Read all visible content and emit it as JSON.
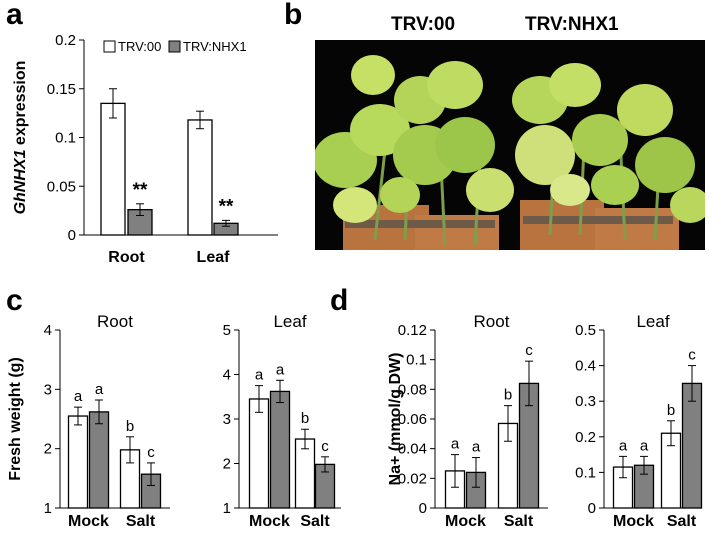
{
  "panel_labels": [
    "a",
    "b",
    "c",
    "d"
  ],
  "photo": {
    "labels": [
      "TRV:00",
      "TRV:NHX1"
    ]
  },
  "colors": {
    "TRV:00": "#ffffff",
    "TRV:NHX1": "#808080",
    "background": "#ffffff",
    "photo_bg": "#000000"
  },
  "chart_data": [
    {
      "id": "a",
      "type": "bar",
      "title": "",
      "ylabel": "GhNHX1 expression",
      "ylim": [
        0,
        0.2
      ],
      "yticks": [
        0,
        0.05,
        0.1,
        0.15,
        0.2
      ],
      "ytick_labels": [
        "0",
        "0.05",
        "0.1",
        "0.15",
        "0.2"
      ],
      "categories": [
        "Root",
        "Leaf"
      ],
      "legend": [
        "TRV:00",
        "TRV:NHX1"
      ],
      "legend_position": "top",
      "series": [
        {
          "name": "TRV:00",
          "values": [
            0.135,
            0.118
          ],
          "errors": [
            0.015,
            0.009
          ],
          "labels": [
            "",
            ""
          ]
        },
        {
          "name": "TRV:NHX1",
          "values": [
            0.026,
            0.012
          ],
          "errors": [
            0.006,
            0.003
          ],
          "labels": [
            "**",
            "**"
          ]
        }
      ]
    },
    {
      "id": "c-root",
      "type": "bar",
      "title": "Root",
      "ylabel": "Fresh weight (g)",
      "ylim": [
        1,
        4
      ],
      "yticks": [
        1,
        2,
        3,
        4
      ],
      "ytick_labels": [
        "1",
        "2",
        "3",
        "4"
      ],
      "categories": [
        "Mock",
        "Salt"
      ],
      "series": [
        {
          "name": "TRV:00",
          "values": [
            2.55,
            1.98
          ],
          "errors": [
            0.15,
            0.22
          ],
          "labels": [
            "a",
            "b"
          ]
        },
        {
          "name": "TRV:NHX1",
          "values": [
            2.62,
            1.57
          ],
          "errors": [
            0.2,
            0.19
          ],
          "labels": [
            "a",
            "c"
          ]
        }
      ]
    },
    {
      "id": "c-leaf",
      "type": "bar",
      "title": "Leaf",
      "ylabel": "",
      "ylim": [
        1,
        5
      ],
      "yticks": [
        1,
        2,
        3,
        4,
        5
      ],
      "ytick_labels": [
        "1",
        "2",
        "3",
        "4",
        "5"
      ],
      "categories": [
        "Mock",
        "Salt"
      ],
      "series": [
        {
          "name": "TRV:00",
          "values": [
            3.45,
            2.55
          ],
          "errors": [
            0.3,
            0.22
          ],
          "labels": [
            "a",
            "b"
          ]
        },
        {
          "name": "TRV:NHX1",
          "values": [
            3.62,
            1.98
          ],
          "errors": [
            0.25,
            0.17
          ],
          "labels": [
            "a",
            "c"
          ]
        }
      ]
    },
    {
      "id": "d-root",
      "type": "bar",
      "title": "Root",
      "ylabel": "Na+ (mmol/g DW)",
      "ylim": [
        0,
        0.12
      ],
      "yticks": [
        0,
        0.02,
        0.04,
        0.06,
        0.08,
        0.1,
        0.12
      ],
      "ytick_labels": [
        "0",
        "0.02",
        "0.04",
        "0.06",
        "0.08",
        "0.1",
        "0.12"
      ],
      "categories": [
        "Mock",
        "Salt"
      ],
      "series": [
        {
          "name": "TRV:00",
          "values": [
            0.025,
            0.057
          ],
          "errors": [
            0.011,
            0.012
          ],
          "labels": [
            "a",
            "b"
          ]
        },
        {
          "name": "TRV:NHX1",
          "values": [
            0.024,
            0.084
          ],
          "errors": [
            0.01,
            0.015
          ],
          "labels": [
            "a",
            "c"
          ]
        }
      ]
    },
    {
      "id": "d-leaf",
      "type": "bar",
      "title": "Leaf",
      "ylabel": "",
      "ylim": [
        0,
        0.5
      ],
      "yticks": [
        0,
        0.1,
        0.2,
        0.3,
        0.4,
        0.5
      ],
      "ytick_labels": [
        "0",
        "0.1",
        "0.2",
        "0.3",
        "0.4",
        "0.5"
      ],
      "categories": [
        "Mock",
        "Salt"
      ],
      "series": [
        {
          "name": "TRV:00",
          "values": [
            0.115,
            0.21
          ],
          "errors": [
            0.03,
            0.035
          ],
          "labels": [
            "a",
            "b"
          ]
        },
        {
          "name": "TRV:NHX1",
          "values": [
            0.12,
            0.35
          ],
          "errors": [
            0.025,
            0.05
          ],
          "labels": [
            "a",
            "c"
          ]
        }
      ]
    }
  ]
}
